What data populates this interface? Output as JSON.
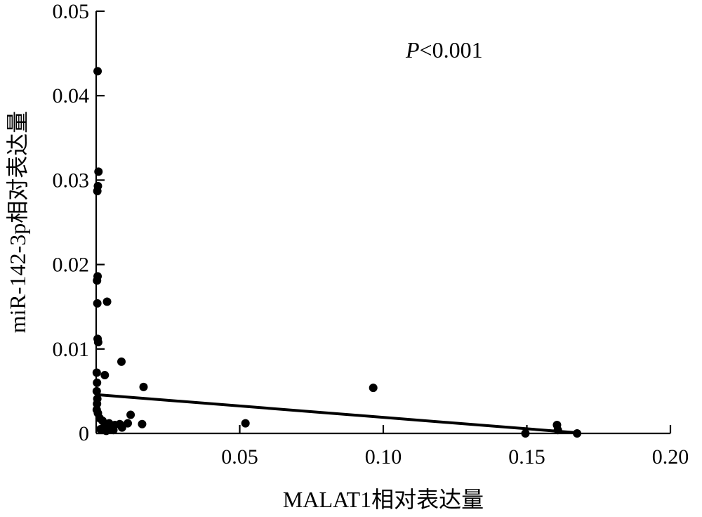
{
  "chart_data": {
    "type": "scatter",
    "xlabel": "MALAT1相对表达量",
    "ylabel": "miR-142-3p相对表达量",
    "xlim": [
      0,
      0.2
    ],
    "ylim": [
      0,
      0.05
    ],
    "x_ticks": [
      0.05,
      0.1,
      0.15,
      0.2
    ],
    "x_tick_labels": [
      "0.05",
      "0.10",
      "0.15",
      "0.20"
    ],
    "y_ticks": [
      0,
      0.01,
      0.02,
      0.03,
      0.04,
      0.05
    ],
    "y_tick_labels": [
      "0",
      "0.01",
      "0.02",
      "0.03",
      "0.04",
      "0.05"
    ],
    "annotation": {
      "italic_part": "P",
      "rest": "<0.001"
    },
    "grid": false,
    "legend": "none",
    "points": [
      {
        "x": 0.0005,
        "y": 0.0429
      },
      {
        "x": 0.0008,
        "y": 0.031
      },
      {
        "x": 0.0006,
        "y": 0.0293
      },
      {
        "x": 0.0004,
        "y": 0.0287
      },
      {
        "x": 0.0005,
        "y": 0.0186
      },
      {
        "x": 0.0003,
        "y": 0.0181
      },
      {
        "x": 0.0004,
        "y": 0.0154
      },
      {
        "x": 0.0038,
        "y": 0.0156
      },
      {
        "x": 0.0005,
        "y": 0.0112
      },
      {
        "x": 0.0007,
        "y": 0.0108
      },
      {
        "x": 0.0088,
        "y": 0.0085
      },
      {
        "x": 0.0002,
        "y": 0.0072
      },
      {
        "x": 0.003,
        "y": 0.0069
      },
      {
        "x": 0.0003,
        "y": 0.006
      },
      {
        "x": 0.0002,
        "y": 0.005
      },
      {
        "x": 0.0165,
        "y": 0.0055
      },
      {
        "x": 0.0004,
        "y": 0.0041
      },
      {
        "x": 0.0003,
        "y": 0.0035
      },
      {
        "x": 0.0002,
        "y": 0.0028
      },
      {
        "x": 0.0006,
        "y": 0.0024
      },
      {
        "x": 0.0012,
        "y": 0.0018
      },
      {
        "x": 0.0022,
        "y": 0.0015
      },
      {
        "x": 0.003,
        "y": 0.001
      },
      {
        "x": 0.0045,
        "y": 0.0012
      },
      {
        "x": 0.0055,
        "y": 0.0008
      },
      {
        "x": 0.0065,
        "y": 0.001
      },
      {
        "x": 0.0082,
        "y": 0.0011
      },
      {
        "x": 0.009,
        "y": 0.0007
      },
      {
        "x": 0.011,
        "y": 0.0012
      },
      {
        "x": 0.012,
        "y": 0.0022
      },
      {
        "x": 0.016,
        "y": 0.0011
      },
      {
        "x": 0.0015,
        "y": 0.0005
      },
      {
        "x": 0.0035,
        "y": 0.0003
      },
      {
        "x": 0.006,
        "y": 0.0004
      },
      {
        "x": 0.052,
        "y": 0.0012
      },
      {
        "x": 0.0965,
        "y": 0.0054
      },
      {
        "x": 0.1495,
        "y": 0.0
      },
      {
        "x": 0.1605,
        "y": 0.001
      },
      {
        "x": 0.1608,
        "y": 0.0004
      },
      {
        "x": 0.1675,
        "y": 0.0
      }
    ],
    "fit_line": {
      "x": [
        0.0,
        0.1665
      ],
      "y": [
        0.0046,
        0.0001
      ]
    }
  }
}
